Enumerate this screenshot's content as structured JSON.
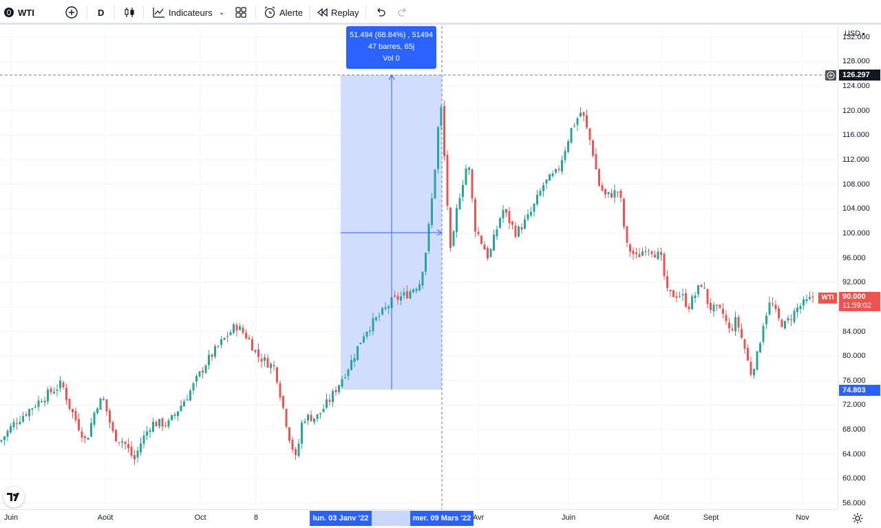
{
  "toolbar": {
    "symbol": "WTI",
    "interval": "D",
    "indicators_label": "Indicateurs",
    "alert_label": "Alerte",
    "replay_label": "Replay"
  },
  "price_axis": {
    "currency": "USD",
    "ticks": [
      "56.000",
      "60.000",
      "64.000",
      "68.000",
      "72.000",
      "76.000",
      "80.000",
      "84.000",
      "88.000",
      "92.000",
      "96.000",
      "100.000",
      "104.000",
      "108.000",
      "112.000",
      "116.000",
      "120.000",
      "124.000",
      "128.000",
      "132.000"
    ],
    "crosshair_price": "126.297",
    "range_low_price": "74.803",
    "last_price_label": "90.000",
    "countdown": "11:59:02",
    "symbol_tag": "WTI"
  },
  "time_axis": {
    "ticks": [
      "Juin",
      "Août",
      "Oct",
      "8",
      "Avr",
      "Juin",
      "Août",
      "Sept",
      "Nov"
    ],
    "range_start": "lun. 03 Janv '22",
    "range_end": "mer. 09 Mars '22"
  },
  "measure": {
    "line1": "51.494 (68.84%) , 51494",
    "line2": "47 barres, 65j",
    "line3": "Vol 0"
  },
  "colors": {
    "up": "#26a69a",
    "down": "#ef5350",
    "accent": "#2962ff",
    "range_fill": "#c9d7fd"
  },
  "chart_data": {
    "type": "candlestick",
    "symbol": "WTI",
    "ylim": [
      56,
      132
    ],
    "grid": true,
    "close_path": [
      [
        0,
        66
      ],
      [
        20,
        69
      ],
      [
        40,
        71
      ],
      [
        60,
        73
      ],
      [
        90,
        75.5
      ],
      [
        100,
        72
      ],
      [
        125,
        66
      ],
      [
        140,
        72
      ],
      [
        150,
        73
      ],
      [
        165,
        67
      ],
      [
        180,
        66
      ],
      [
        195,
        63
      ],
      [
        205,
        66
      ],
      [
        220,
        69
      ],
      [
        245,
        69
      ],
      [
        275,
        74
      ],
      [
        300,
        79
      ],
      [
        320,
        82
      ],
      [
        343,
        85
      ],
      [
        360,
        83
      ],
      [
        375,
        80
      ],
      [
        400,
        78
      ],
      [
        405,
        75
      ],
      [
        420,
        67
      ],
      [
        430,
        63
      ],
      [
        440,
        70
      ],
      [
        460,
        70
      ],
      [
        480,
        73
      ],
      [
        495,
        76
      ],
      [
        510,
        79
      ],
      [
        530,
        84
      ],
      [
        555,
        87
      ],
      [
        570,
        89
      ],
      [
        590,
        90
      ],
      [
        610,
        92
      ],
      [
        620,
        98
      ],
      [
        630,
        108
      ],
      [
        640,
        122
      ],
      [
        655,
        96
      ],
      [
        665,
        105
      ],
      [
        680,
        112
      ],
      [
        690,
        101
      ],
      [
        710,
        96
      ],
      [
        730,
        104
      ],
      [
        750,
        100
      ],
      [
        770,
        103
      ],
      [
        790,
        108
      ],
      [
        810,
        110
      ],
      [
        830,
        117
      ],
      [
        845,
        120
      ],
      [
        860,
        114
      ],
      [
        870,
        108
      ],
      [
        880,
        106
      ],
      [
        900,
        107
      ],
      [
        910,
        98
      ],
      [
        925,
        96
      ],
      [
        940,
        98
      ],
      [
        960,
        96
      ],
      [
        970,
        90
      ],
      [
        990,
        90
      ],
      [
        1000,
        88
      ],
      [
        1020,
        92
      ],
      [
        1030,
        88
      ],
      [
        1050,
        87
      ],
      [
        1060,
        84
      ],
      [
        1070,
        86
      ],
      [
        1085,
        80
      ],
      [
        1090,
        77
      ],
      [
        1100,
        80
      ],
      [
        1110,
        86
      ],
      [
        1120,
        89
      ],
      [
        1130,
        86
      ],
      [
        1140,
        85
      ],
      [
        1160,
        88
      ],
      [
        1175,
        89
      ],
      [
        1185,
        90
      ]
    ],
    "measure_range": {
      "start_price": 74.803,
      "end_price": 126.297,
      "change": 51.494,
      "change_pct": 68.84,
      "bars": 47,
      "days": 65
    }
  }
}
